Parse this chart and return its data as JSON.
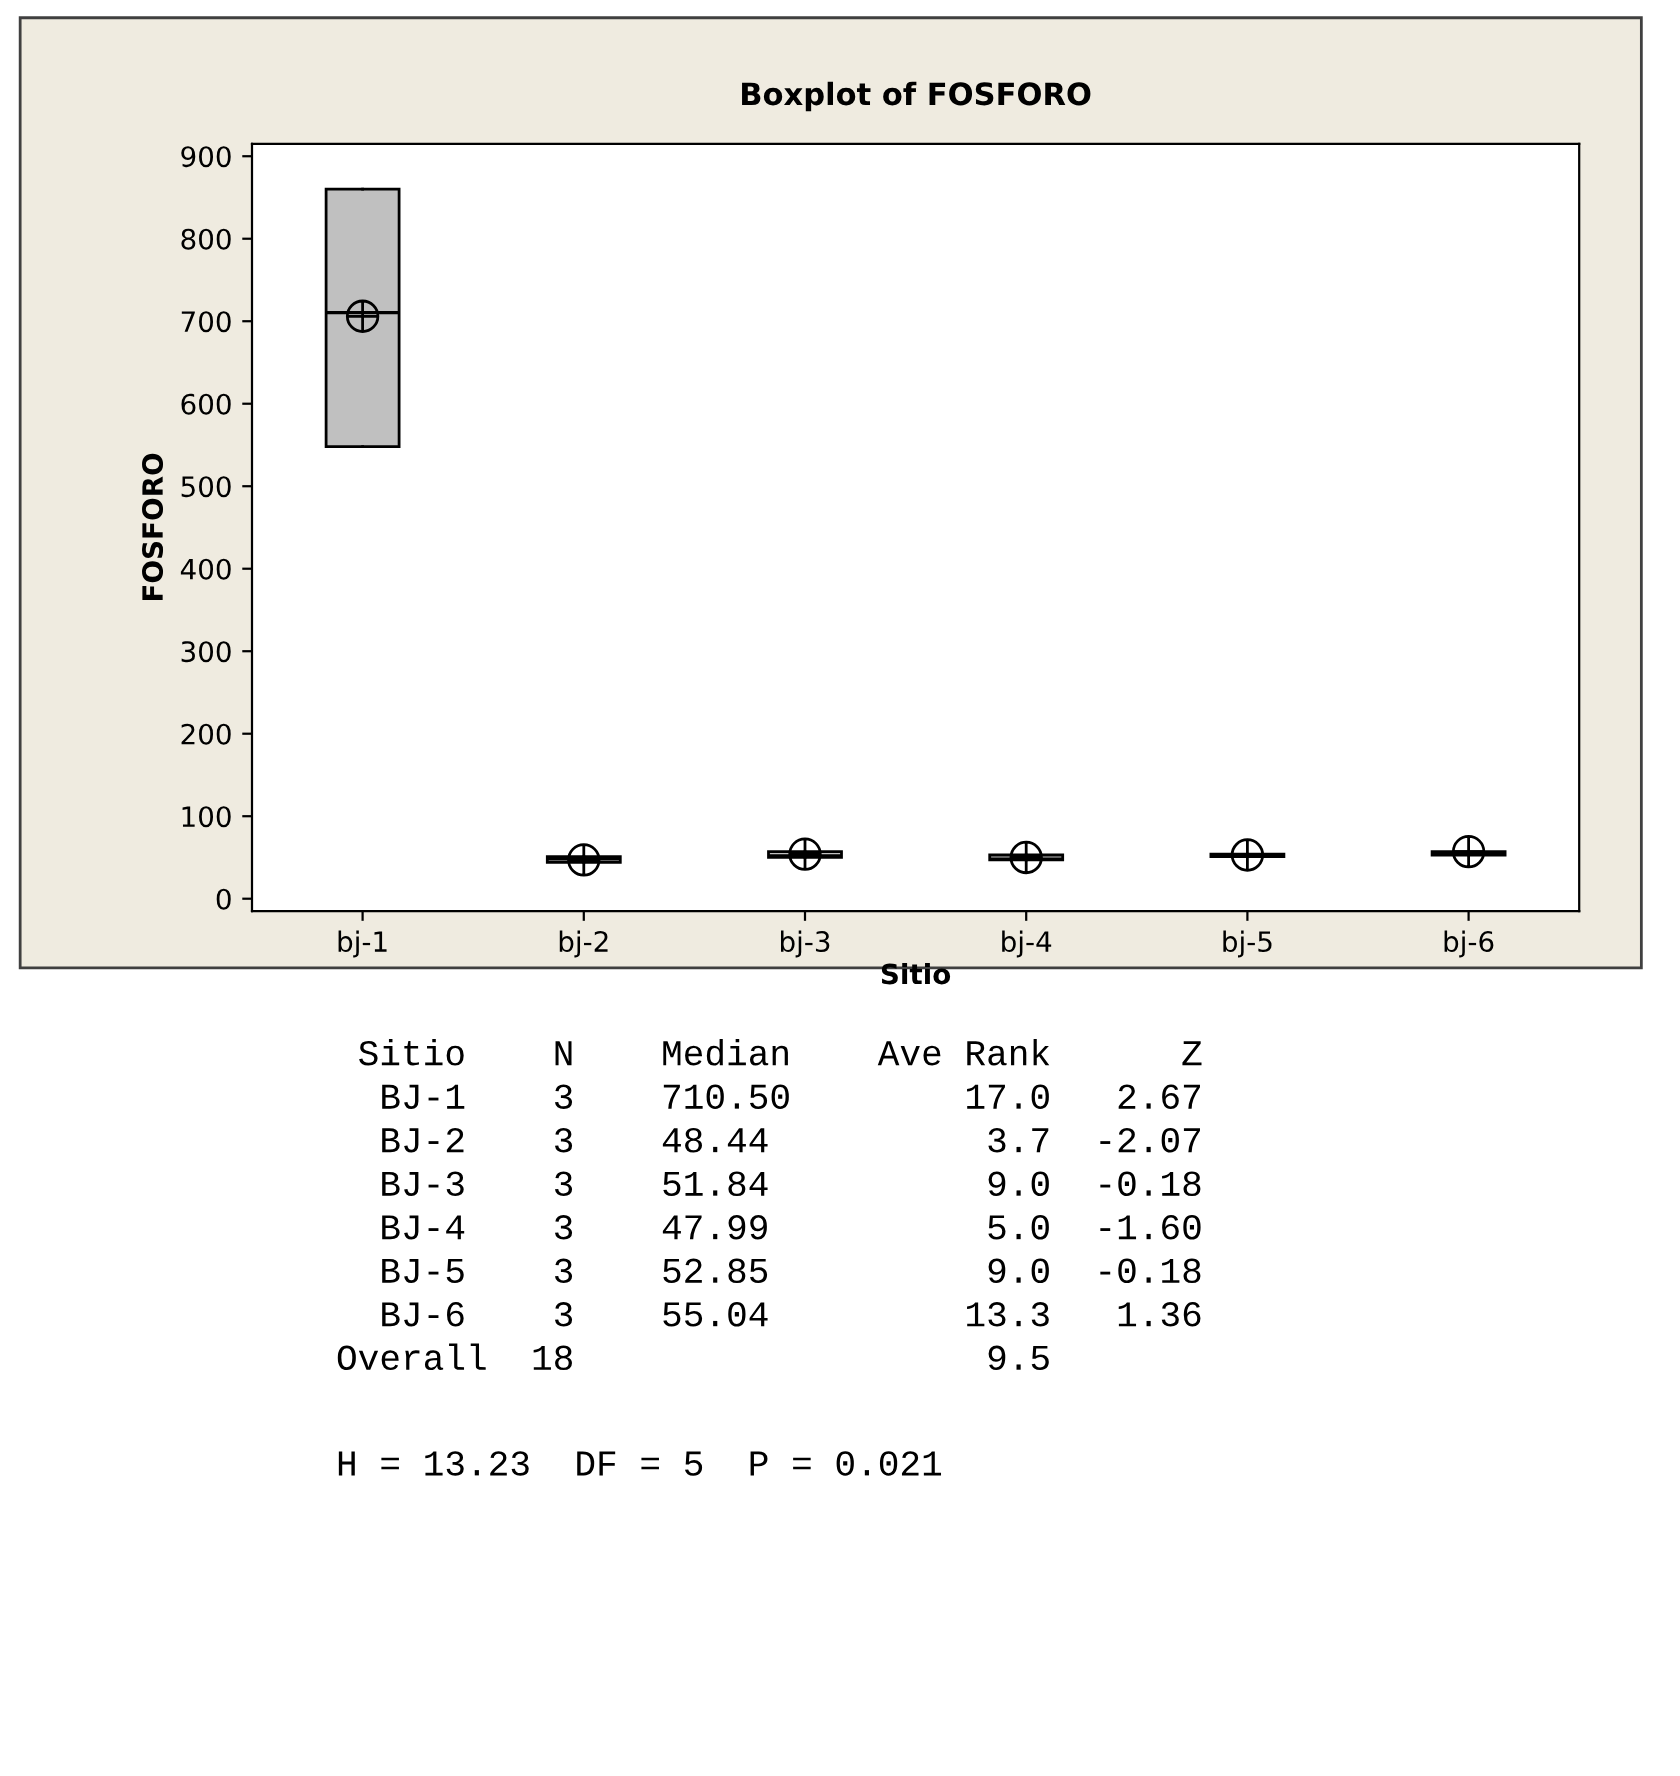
{
  "chart_data": {
    "type": "box",
    "title": "Boxplot of FOSFORO",
    "xlabel": "Sitio",
    "ylabel": "FOSFORO",
    "categories": [
      "bj-1",
      "bj-2",
      "bj-3",
      "bj-4",
      "bj-5",
      "bj-6"
    ],
    "color": "#c0c0c0",
    "boxes": [
      {
        "low": 548,
        "q1": 548,
        "median": 710.5,
        "q3": 860,
        "high": 860,
        "mean": 706
      },
      {
        "low": 44,
        "q1": 44,
        "median": 48.44,
        "q3": 51,
        "high": 51,
        "mean": 47
      },
      {
        "low": 50,
        "q1": 50,
        "median": 51.84,
        "q3": 57,
        "high": 57,
        "mean": 54
      },
      {
        "low": 47,
        "q1": 47,
        "median": 47.99,
        "q3": 53,
        "high": 53,
        "mean": 50
      },
      {
        "low": 51,
        "q1": 51,
        "median": 52.85,
        "q3": 54,
        "high": 54,
        "mean": 53
      },
      {
        "low": 53,
        "q1": 53,
        "median": 55.04,
        "q3": 57,
        "high": 57,
        "mean": 57
      }
    ],
    "ylim": [
      -15,
      915
    ],
    "yticks": [
      0,
      100,
      200,
      300,
      400,
      500,
      600,
      700,
      800,
      900
    ],
    "grid": false,
    "annotations": [
      " Sitio    N    Median    Ave Rank      Z",
      "  BJ-1    3    710.50        17.0   2.67",
      "  BJ-2    3    48.44          3.7  -2.07",
      "  BJ-3    3    51.84          9.0  -0.18",
      "  BJ-4    3    47.99          5.0  -1.60",
      "  BJ-5    3    52.85          9.0  -0.18",
      "  BJ-6    3    55.04         13.3   1.36",
      "Overall  18                   9.5",
      "H = 13.23  DF = 5  P = 0.021"
    ]
  }
}
